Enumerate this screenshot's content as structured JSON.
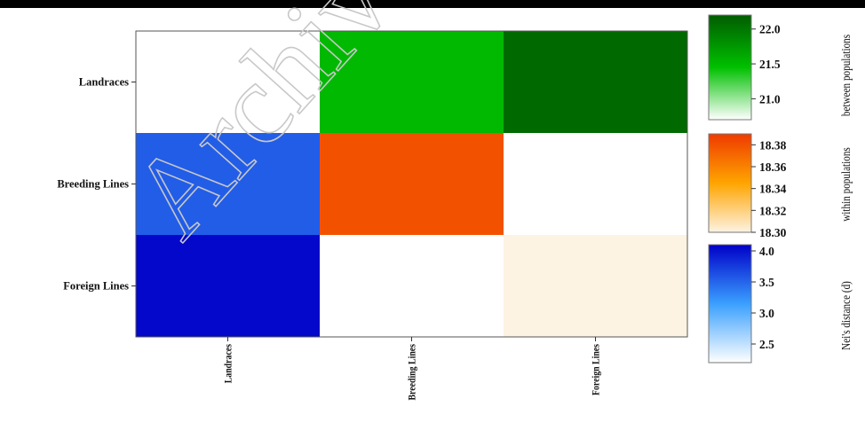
{
  "chart_data": {
    "type": "heatmap",
    "rows": [
      "Landraces",
      "Breeding Lines",
      "Foreign Lines"
    ],
    "columns": [
      "Landraces",
      "Breeding Lines",
      "Foreign Lines"
    ],
    "cells": [
      {
        "row": "Landraces",
        "col": "Landraces",
        "group": "blank",
        "value": null
      },
      {
        "row": "Landraces",
        "col": "Breeding Lines",
        "group": "between",
        "value": 21.5
      },
      {
        "row": "Landraces",
        "col": "Foreign Lines",
        "group": "between",
        "value": 22.1
      },
      {
        "row": "Breeding Lines",
        "col": "Landraces",
        "group": "nei",
        "value": 3.55
      },
      {
        "row": "Breeding Lines",
        "col": "Breeding Lines",
        "group": "within",
        "value": 18.38
      },
      {
        "row": "Breeding Lines",
        "col": "Foreign Lines",
        "group": "blank",
        "value": null
      },
      {
        "row": "Foreign Lines",
        "col": "Landraces",
        "group": "nei",
        "value": 4.05
      },
      {
        "row": "Foreign Lines",
        "col": "Breeding Lines",
        "group": "blank",
        "value": null
      },
      {
        "row": "Foreign Lines",
        "col": "Foreign Lines",
        "group": "within",
        "value": 18.3
      }
    ],
    "colorbars": [
      {
        "id": "between",
        "title": "between populations",
        "range": [
          20.7,
          22.2
        ],
        "ticks": [
          {
            "value": 22.0,
            "label": "22.0"
          },
          {
            "value": 21.5,
            "label": "21.5"
          },
          {
            "value": 21.0,
            "label": "21.0"
          }
        ],
        "colors": [
          "#ffffff",
          "#00c000",
          "#005c00"
        ]
      },
      {
        "id": "within",
        "title": "within populations",
        "range": [
          18.3,
          18.39
        ],
        "ticks": [
          {
            "value": 18.38,
            "label": "18.38"
          },
          {
            "value": 18.36,
            "label": "18.36"
          },
          {
            "value": 18.34,
            "label": "18.34"
          },
          {
            "value": 18.32,
            "label": "18.32"
          },
          {
            "value": 18.3,
            "label": "18.30"
          }
        ],
        "colors": [
          "#fdf3e3",
          "#ffa500",
          "#ee3a00"
        ]
      },
      {
        "id": "nei",
        "title": "Nei's distance (d)",
        "range": [
          2.2,
          4.1
        ],
        "ticks": [
          {
            "value": 4.0,
            "label": "4.0"
          },
          {
            "value": 3.5,
            "label": "3.5"
          },
          {
            "value": 3.0,
            "label": "3.0"
          },
          {
            "value": 2.5,
            "label": "2.5"
          }
        ],
        "colors": [
          "#ffffff",
          "#3aa0ff",
          "#0000c8"
        ]
      }
    ]
  },
  "watermark": "Archived"
}
